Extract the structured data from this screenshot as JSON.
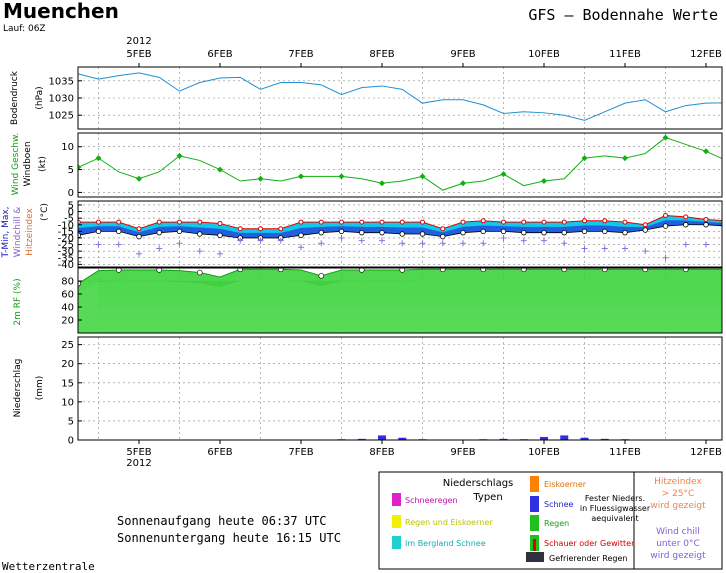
{
  "header": {
    "city": "Muenchen",
    "run": "Lauf: 06Z",
    "title": "GFS — Bodennahe Werte",
    "year_top": "2012",
    "year_bottom": "2012",
    "footer": "Wetterzentrale"
  },
  "sun": {
    "sunrise": "Sonnenaufgang heute 06:37 UTC",
    "sunset": "Sonnenuntergang heute 16:15 UTC"
  },
  "legend": {
    "title1": "Niederschlags",
    "title2": "Typen",
    "schneeregen": "Schneeregen",
    "regen_eis": "Regen und Eiskoerner",
    "bergland": "Im Bergland Schnee",
    "eiskoerner": "Eiskoerner",
    "schnee": "Schnee",
    "fester1": "Fester Nieders.",
    "fester2": "in Fluessigwasser",
    "fester3": "aequivalent",
    "regen": "Regen",
    "schauer": "Schauer oder Gewitter",
    "gefrierend": "Gefrierender Regen",
    "hitze1": "Hitzeindex",
    "hitze2": "> 25°C",
    "hitze3": "wird gezeigt",
    "chill1": "Wind chill",
    "chill2": "unter 0°C",
    "chill3": "wird gezeigt",
    "colors": {
      "schneeregen": "#e020c8",
      "regen_eis": "#f0f000",
      "bergland": "#20d0d0",
      "eiskoerner": "#ff8000",
      "schnee": "#3030e0",
      "regen": "#20c020",
      "schauer": "#e00000",
      "gefrierend": "#303040"
    }
  },
  "chart_data": {
    "type": "line",
    "x_ticks": [
      "5FEB",
      "6FEB",
      "7FEB",
      "8FEB",
      "9FEB",
      "10FEB",
      "11FEB",
      "12FEB"
    ],
    "x_unit": "days since 5FEB 00Z",
    "x_range": [
      -0.75,
      7.3
    ],
    "panels": [
      {
        "name": "pressure",
        "ylabel1": "Bodendruck",
        "ylabel2": "(hPa)",
        "ylim": [
          1021,
          1039
        ],
        "ticks": [
          1025,
          1030,
          1035
        ],
        "color": "#2090d0",
        "series": [
          {
            "name": "Bodendruck",
            "x": [
              -0.75,
              -0.5,
              -0.25,
              0,
              0.25,
              0.5,
              0.75,
              1,
              1.25,
              1.5,
              1.75,
              2,
              2.25,
              2.5,
              2.75,
              3,
              3.25,
              3.5,
              3.75,
              4,
              4.25,
              4.5,
              4.75,
              5,
              5.25,
              5.5,
              5.75,
              6,
              6.25,
              6.5,
              6.75,
              7,
              7.25
            ],
            "values": [
              1037,
              1035.5,
              1036.5,
              1037.3,
              1036,
              1032,
              1034.5,
              1035.8,
              1036,
              1032.5,
              1034.5,
              1034.5,
              1033.8,
              1031,
              1033,
              1033.5,
              1032.5,
              1028.5,
              1029.5,
              1029.5,
              1028,
              1025.5,
              1026,
              1025.7,
              1025,
              1023.5,
              1026,
              1028.5,
              1029.5,
              1026,
              1027.8,
              1028.5,
              1028.6
            ]
          }
        ]
      },
      {
        "name": "wind",
        "ylabel1": "Wind Geschw.",
        "ylabel2": "Windboen",
        "ylabel3": "(kt)",
        "ylim": [
          -1,
          13
        ],
        "ticks": [
          0,
          5,
          10
        ],
        "color": "#10b010",
        "series": [
          {
            "name": "Wind",
            "x": [
              -0.75,
              -0.5,
              -0.25,
              0,
              0.25,
              0.5,
              0.75,
              1,
              1.25,
              1.5,
              1.75,
              2,
              2.25,
              2.5,
              2.75,
              3,
              3.25,
              3.5,
              3.75,
              4,
              4.25,
              4.5,
              4.75,
              5,
              5.25,
              5.5,
              5.75,
              6,
              6.25,
              6.5,
              6.75,
              7,
              7.25
            ],
            "values": [
              5.5,
              7.5,
              4.5,
              3,
              4.5,
              8,
              7,
              5,
              2.5,
              3,
              2.5,
              3.5,
              3.5,
              3.5,
              3,
              2,
              2.5,
              3.5,
              0.5,
              2,
              2.5,
              4,
              1.5,
              2.5,
              3,
              7.5,
              8,
              7.5,
              8.5,
              12,
              10.5,
              9,
              7
            ]
          }
        ]
      },
      {
        "name": "temperature",
        "ylabel1": "T-Min, Max,",
        "ylabel2": "Windchill &",
        "ylabel3": "Hitzeindex",
        "unit": "(°C)",
        "ylim": [
          -42,
          8
        ],
        "ticks": [
          5,
          0,
          -5,
          -10,
          -15,
          -20,
          -25,
          -30,
          -35,
          -40
        ],
        "series": [
          {
            "name": "T-Max",
            "color": "#e00000",
            "values": [
              -8,
              -8,
              -8,
              -13,
              -8,
              -8,
              -8,
              -9,
              -13,
              -13,
              -13,
              -8,
              -8,
              -8,
              -8,
              -8,
              -8,
              -8,
              -13,
              -8,
              -7,
              -8,
              -8,
              -8,
              -8,
              -7,
              -7,
              -8,
              -10,
              -3,
              -4,
              -6,
              -7
            ]
          },
          {
            "name": "T-Min",
            "color": "#ffffff",
            "values": [
              -18,
              -15,
              -15,
              -19,
              -16,
              -15,
              -17,
              -18,
              -20,
              -20,
              -20,
              -18,
              -16,
              -15,
              -16,
              -16,
              -17,
              -17,
              -19,
              -16,
              -15,
              -15,
              -16,
              -16,
              -16,
              -15,
              -15,
              -16,
              -14,
              -11,
              -10,
              -10,
              -11
            ]
          },
          {
            "name": "Windchill",
            "color": "#9070e0",
            "values": [
              -38,
              -25,
              -25,
              -32,
              -28,
              -24,
              -30,
              -32,
              -22,
              -22,
              -22,
              -27,
              -24,
              -20,
              -22,
              -22,
              -24,
              -24,
              -24,
              -24,
              -24,
              -20,
              -22,
              -22,
              -24,
              -28,
              -28,
              -28,
              -30,
              -35,
              -25,
              -25,
              -25
            ]
          }
        ]
      },
      {
        "name": "humidity",
        "ylabel1": "2m RF (%)",
        "ylim": [
          0,
          100
        ],
        "ticks": [
          20,
          40,
          60,
          80
        ],
        "series": [
          {
            "name": "2m RF",
            "color": "#20c020",
            "values": [
              76,
              96,
              97,
              97,
              97,
              96,
              93,
              86,
              98,
              98,
              98,
              97,
              88,
              97,
              97,
              97,
              97,
              98,
              98,
              98,
              98,
              98,
              98,
              98,
              98,
              98,
              98,
              98,
              98,
              98,
              98,
              98,
              98
            ]
          }
        ]
      },
      {
        "name": "precip",
        "ylabel1": "Niederschlag",
        "ylabel2": "(mm)",
        "ylim": [
          0,
          27
        ],
        "ticks": [
          0,
          5,
          10,
          15,
          20,
          25
        ],
        "series": [
          {
            "name": "Schnee",
            "color": "#3030e0",
            "x": [
              2.5,
              2.75,
              3,
              3.25,
              3.5,
              4.25,
              4.5,
              4.75,
              5,
              5.25,
              5.5,
              5.75,
              6
            ],
            "values": [
              0.2,
              0.3,
              1.2,
              0.6,
              0.2,
              0.2,
              0.3,
              0.2,
              0.8,
              1.2,
              0.6,
              0.3,
              0.2
            ]
          }
        ]
      }
    ]
  }
}
